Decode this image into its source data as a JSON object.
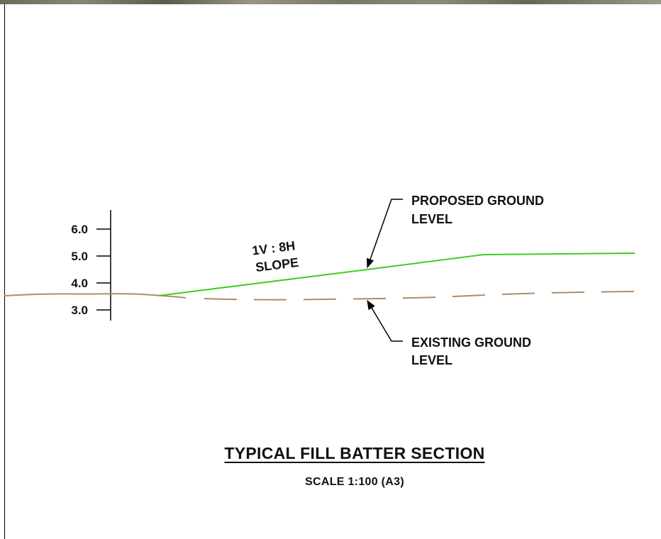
{
  "drawing": {
    "title": "TYPICAL FILL BATTER SECTION",
    "scale_note": "SCALE 1:100 (A3)"
  },
  "axis": {
    "ticks": [
      {
        "label": "6.0",
        "value": 6.0
      },
      {
        "label": "5.0",
        "value": 5.0
      },
      {
        "label": "4.0",
        "value": 4.0
      },
      {
        "label": "3.0",
        "value": 3.0
      }
    ]
  },
  "annotations": {
    "slope_line1": "1V : 8H",
    "slope_line2": "SLOPE",
    "proposed_line1": "PROPOSED GROUND",
    "proposed_line2": "LEVEL",
    "existing_line1": "EXISTING GROUND",
    "existing_line2": "LEVEL"
  },
  "colors": {
    "proposed_ground": "#44cc22",
    "existing_ground": "#b08a66",
    "linework": "#000000"
  }
}
